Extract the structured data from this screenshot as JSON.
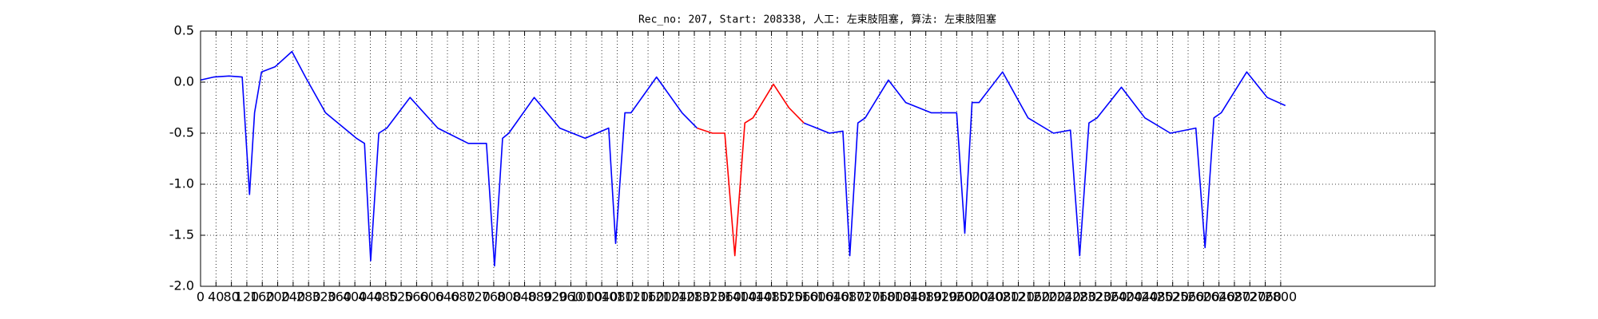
{
  "chart_data": {
    "type": "line",
    "title": "Rec_no: 207, Start: 208338, 人工: 左束肢阻塞, 算法: 左束肢阻塞",
    "xlim": [
      0,
      3200
    ],
    "xticks": [
      0,
      40,
      80,
      120,
      160,
      200,
      240,
      280,
      320,
      360,
      400,
      440,
      480,
      520,
      560,
      600,
      640,
      680,
      720,
      760,
      800,
      840,
      880,
      920,
      960,
      1000,
      1040,
      1080,
      1120,
      1160,
      1200,
      1240,
      1280,
      1320,
      1360,
      1400,
      1440,
      1480,
      1520,
      1560,
      1600,
      1640,
      1680,
      1720,
      1760,
      1800,
      1840,
      1880,
      1920,
      1960,
      2000,
      2040,
      2080,
      2120,
      2160,
      2200,
      2240,
      2280,
      2320,
      2360,
      2400,
      2440,
      2480,
      2520,
      2560,
      2600,
      2640,
      2680,
      2720,
      2760,
      2800
    ],
    "ylim": [
      -2.0,
      0.5
    ],
    "yticks": [
      {
        "value": -2.0,
        "label": "-2.0"
      },
      -1.5,
      {
        "value": -1.0,
        "label": "-1.0"
      },
      -0.5,
      {
        "value": 0.0,
        "label": "0.0"
      },
      0.5
    ],
    "grid": true,
    "series": [
      {
        "color": "#0000ff",
        "x": [
          0,
          34,
          74,
          108,
          127,
          140,
          158,
          193,
          237,
          272,
          324,
          404,
          425,
          441,
          462,
          483,
          543,
          615,
          694,
          741,
          762,
          783,
          799,
          865,
          931,
          997,
          1058,
          1076,
          1100,
          1116,
          1182,
          1248,
          1287,
          1400,
          1564,
          1630,
          1665,
          1683,
          1704,
          1723,
          1783,
          1828,
          1894,
          1960,
          1981,
          2000,
          2018,
          2079,
          2145,
          2211,
          2255,
          2279,
          2303,
          2324,
          2387,
          2448,
          2514,
          2580,
          2604,
          2627,
          2646,
          2712,
          2765,
          2812
        ],
        "values": [
          0.02,
          0.05,
          0.06,
          0.05,
          -1.1,
          -0.3,
          0.1,
          0.15,
          0.3,
          0.05,
          -0.3,
          -0.55,
          -0.6,
          -1.75,
          -0.5,
          -0.45,
          -0.15,
          -0.45,
          -0.6,
          -0.6,
          -1.8,
          -0.55,
          -0.5,
          -0.15,
          -0.45,
          -0.55,
          -0.45,
          -1.58,
          -0.3,
          -0.3,
          0.05,
          -0.3,
          -0.45,
          null,
          -0.4,
          -0.5,
          -0.48,
          -1.7,
          -0.4,
          -0.35,
          0.02,
          -0.2,
          -0.3,
          -0.3,
          -1.48,
          -0.2,
          -0.2,
          0.1,
          -0.35,
          -0.5,
          -0.47,
          -1.7,
          -0.4,
          -0.35,
          -0.05,
          -0.35,
          -0.5,
          -0.45,
          -1.62,
          -0.35,
          -0.3,
          0.1,
          -0.15,
          -0.23
        ]
      },
      {
        "color": "#ff0000",
        "x": [
          1287,
          1327,
          1359,
          1385,
          1411,
          1432,
          1485,
          1525,
          1564
        ],
        "values": [
          -0.45,
          -0.5,
          -0.5,
          -1.7,
          -0.4,
          -0.35,
          -0.02,
          -0.25,
          -0.4
        ]
      }
    ]
  }
}
